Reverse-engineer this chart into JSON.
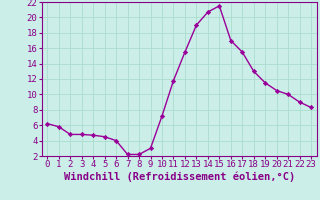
{
  "x": [
    0,
    1,
    2,
    3,
    4,
    5,
    6,
    7,
    8,
    9,
    10,
    11,
    12,
    13,
    14,
    15,
    16,
    17,
    18,
    19,
    20,
    21,
    22,
    23
  ],
  "y": [
    6.2,
    5.8,
    4.8,
    4.8,
    4.7,
    4.5,
    4.0,
    2.2,
    2.2,
    3.0,
    7.2,
    11.8,
    15.5,
    19.0,
    20.7,
    21.5,
    17.0,
    15.5,
    13.0,
    11.5,
    10.5,
    10.0,
    9.0,
    8.3
  ],
  "line_color": "#990099",
  "marker": "D",
  "marker_size": 2.2,
  "linewidth": 1.0,
  "xlabel": "Windchill (Refroidissement éolien,°C)",
  "xlim": [
    -0.5,
    23.5
  ],
  "ylim": [
    2,
    22
  ],
  "yticks": [
    2,
    4,
    6,
    8,
    10,
    12,
    14,
    16,
    18,
    20,
    22
  ],
  "xticks": [
    0,
    1,
    2,
    3,
    4,
    5,
    6,
    7,
    8,
    9,
    10,
    11,
    12,
    13,
    14,
    15,
    16,
    17,
    18,
    19,
    20,
    21,
    22,
    23
  ],
  "bg_color": "#cceee8",
  "grid_color": "#aaddcc",
  "tick_label_color": "#880088",
  "xlabel_color": "#880088",
  "xlabel_fontsize": 7.5,
  "tick_fontsize": 6.5,
  "fig_width": 3.2,
  "fig_height": 2.0,
  "dpi": 100
}
